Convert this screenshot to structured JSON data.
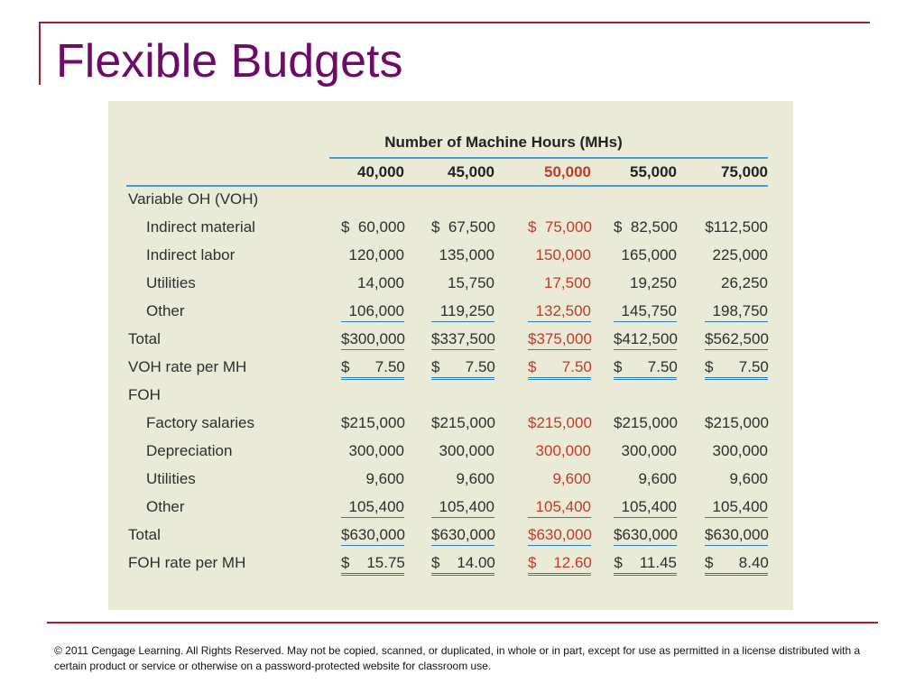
{
  "title": "Flexible Budgets",
  "table": {
    "header": "Number of Machine Hours (MHs)",
    "columns": [
      "40,000",
      "45,000",
      "50,000",
      "55,000",
      "75,000"
    ],
    "highlight_col": 2,
    "rows": [
      {
        "label": "Variable OH (VOH)",
        "indent": false,
        "values": [],
        "line": "none"
      },
      {
        "label": "Indirect material",
        "indent": true,
        "values": [
          "$  60,000",
          "$  67,500",
          "$  75,000",
          "$  82,500",
          "$112,500"
        ],
        "line": "none"
      },
      {
        "label": "Indirect labor",
        "indent": true,
        "values": [
          "120,000",
          "135,000",
          "150,000",
          "165,000",
          "225,000"
        ],
        "line": "none"
      },
      {
        "label": "Utilities",
        "indent": true,
        "values": [
          "14,000",
          "15,750",
          "17,500",
          "19,250",
          "26,250"
        ],
        "line": "none"
      },
      {
        "label": "Other",
        "indent": true,
        "values": [
          "106,000",
          "119,250",
          "132,500",
          "145,750",
          "198,750"
        ],
        "line": "single"
      },
      {
        "label": "Total",
        "indent": false,
        "values": [
          "$300,000",
          "$337,500",
          "$375,000",
          "$412,500",
          "$562,500"
        ],
        "line": "single"
      },
      {
        "label": "VOH rate per MH",
        "indent": false,
        "values": [
          "$      7.50",
          "$      7.50",
          "$      7.50",
          "$      7.50",
          "$      7.50"
        ],
        "line": "double"
      },
      {
        "label": "FOH",
        "indent": false,
        "values": [],
        "line": "none"
      },
      {
        "label": "Factory salaries",
        "indent": true,
        "values": [
          "$215,000",
          "$215,000",
          "$215,000",
          "$215,000",
          "$215,000"
        ],
        "line": "none"
      },
      {
        "label": "Depreciation",
        "indent": true,
        "values": [
          "300,000",
          "300,000",
          "300,000",
          "300,000",
          "300,000"
        ],
        "line": "none"
      },
      {
        "label": "Utilities",
        "indent": true,
        "values": [
          "9,600",
          "9,600",
          "9,600",
          "9,600",
          "9,600"
        ],
        "line": "none"
      },
      {
        "label": "Other",
        "indent": true,
        "values": [
          "105,400",
          "105,400",
          "105,400",
          "105,400",
          "105,400"
        ],
        "line": "single"
      },
      {
        "label": "Total",
        "indent": false,
        "values": [
          "$630,000",
          "$630,000",
          "$630,000",
          "$630,000",
          "$630,000"
        ],
        "line": "single"
      },
      {
        "label": "FOH rate per MH",
        "indent": false,
        "values": [
          "$    15.75",
          "$    14.00",
          "$    12.60",
          "$    11.45",
          "$      8.40"
        ],
        "line": "double"
      }
    ]
  },
  "footer": "© 2011 Cengage Learning.  All Rights Reserved.  May not be copied, scanned, or duplicated, in whole or in part, except for use as permitted in a license distributed with a certain product or service or otherwise on a password-protected website for classroom use.",
  "colors": {
    "title": "#6c0b68",
    "accent": "#a51d36",
    "highlight": "#c0392b",
    "rule": "#4a9ad0",
    "panel": "#e9ebd6"
  }
}
